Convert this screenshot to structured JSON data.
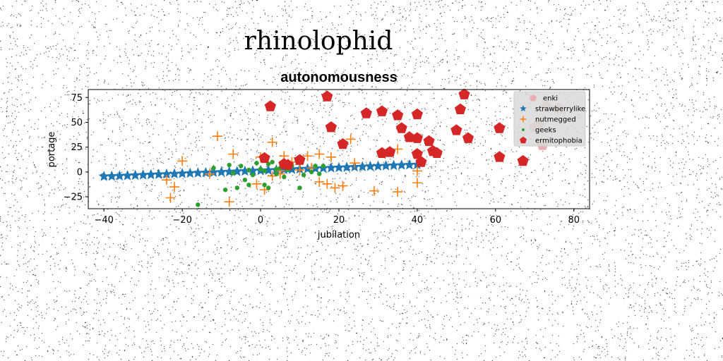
{
  "colors": {
    "background": "#ffffff",
    "noise": "#000000",
    "axes": "#000000",
    "legend_bg": "#d9d9d9"
  },
  "chart_data": {
    "type": "scatter",
    "suptitle": "rhinolophid",
    "title": "autonomousness",
    "xlabel": "jubilation",
    "ylabel": "portage",
    "xlim": [
      -44,
      84
    ],
    "ylim": [
      -37,
      83
    ],
    "xticks": [
      -40,
      -20,
      0,
      20,
      40,
      60,
      80
    ],
    "yticks": [
      -25,
      0,
      25,
      50,
      75
    ],
    "xtick_labels": [
      "−40",
      "−20",
      "0",
      "20",
      "40",
      "60",
      "80"
    ],
    "ytick_labels": [
      "−25",
      "0",
      "25",
      "50",
      "75"
    ],
    "grid": false,
    "legend_position": "top-right",
    "series": [
      {
        "name": "enki",
        "marker": "pentagon",
        "color": "#e8b0b0",
        "points": [
          [
            73,
            66
          ],
          [
            71,
            48
          ],
          [
            70,
            45
          ],
          [
            72,
            27
          ],
          [
            76,
            64
          ]
        ]
      },
      {
        "name": "strawberrylike",
        "marker": "star",
        "color": "#1f77b4",
        "points": [
          [
            -40,
            -4.5
          ],
          [
            -38,
            -4.3
          ],
          [
            -36,
            -4.0
          ],
          [
            -34,
            -3.7
          ],
          [
            -32,
            -3.4
          ],
          [
            -30,
            -3.1
          ],
          [
            -28,
            -2.8
          ],
          [
            -26,
            -2.5
          ],
          [
            -24,
            -2.2
          ],
          [
            -22,
            -1.9
          ],
          [
            -20,
            -1.6
          ],
          [
            -18,
            -1.3
          ],
          [
            -16,
            -1.0
          ],
          [
            -14,
            -0.7
          ],
          [
            -12,
            -0.4
          ],
          [
            -10,
            -0.1
          ],
          [
            -8,
            0.2
          ],
          [
            -6,
            0.5
          ],
          [
            -4,
            0.8
          ],
          [
            -2,
            1.1
          ],
          [
            0,
            1.4
          ],
          [
            2,
            1.7
          ],
          [
            4,
            2.0
          ],
          [
            6,
            2.3
          ],
          [
            8,
            2.6
          ],
          [
            10,
            2.9
          ],
          [
            12,
            3.2
          ],
          [
            14,
            3.5
          ],
          [
            16,
            3.8
          ],
          [
            18,
            4.1
          ],
          [
            20,
            4.4
          ],
          [
            22,
            4.7
          ],
          [
            24,
            5.0
          ],
          [
            26,
            5.3
          ],
          [
            28,
            5.6
          ],
          [
            30,
            5.9
          ],
          [
            32,
            6.2
          ],
          [
            34,
            6.5
          ],
          [
            36,
            6.8
          ],
          [
            38,
            7.1
          ],
          [
            40,
            7.4
          ]
        ]
      },
      {
        "name": "nutmegged",
        "marker": "plus",
        "color": "#ff7f0e",
        "points": [
          [
            -11,
            36
          ],
          [
            -20,
            11
          ],
          [
            -7,
            18
          ],
          [
            -24,
            -8
          ],
          [
            -22,
            -15
          ],
          [
            -23,
            -26
          ],
          [
            -8,
            -30
          ],
          [
            -13,
            -2
          ],
          [
            0,
            15
          ],
          [
            3,
            30
          ],
          [
            6,
            16
          ],
          [
            8,
            10
          ],
          [
            12,
            16
          ],
          [
            15,
            18
          ],
          [
            18,
            15
          ],
          [
            23,
            33
          ],
          [
            24,
            9
          ],
          [
            35,
            23
          ],
          [
            -1,
            -12
          ],
          [
            1,
            -18
          ],
          [
            3,
            -4
          ],
          [
            5,
            1
          ],
          [
            10,
            2
          ],
          [
            17,
            -12
          ],
          [
            19,
            -16
          ],
          [
            21,
            -14
          ],
          [
            29,
            -19
          ],
          [
            35,
            -20
          ],
          [
            40,
            1
          ],
          [
            40,
            -11
          ],
          [
            5,
            -2
          ],
          [
            7,
            8
          ],
          [
            13,
            4
          ],
          [
            15,
            -10
          ]
        ]
      },
      {
        "name": "geeks",
        "marker": "dot",
        "color": "#2ca02c",
        "points": [
          [
            -16,
            -33
          ],
          [
            -9,
            -18
          ],
          [
            -6,
            -16
          ],
          [
            -3,
            -13
          ],
          [
            -8,
            7
          ],
          [
            -5,
            6
          ],
          [
            -3,
            2
          ],
          [
            -1,
            9
          ],
          [
            0,
            3
          ],
          [
            1,
            1
          ],
          [
            2,
            8
          ],
          [
            3,
            10
          ],
          [
            4,
            -2
          ],
          [
            5,
            4
          ],
          [
            6,
            -5
          ],
          [
            7,
            2
          ],
          [
            8,
            6
          ],
          [
            10,
            -16
          ],
          [
            1,
            -13
          ],
          [
            2,
            -16
          ],
          [
            -2,
            -3
          ],
          [
            -4,
            -8
          ],
          [
            14,
            6
          ],
          [
            15,
            -2
          ],
          [
            16,
            6
          ],
          [
            -7,
            -1
          ],
          [
            4,
            3
          ],
          [
            11,
            -3
          ],
          [
            -12,
            4
          ],
          [
            13,
            0
          ]
        ]
      },
      {
        "name": "ermitophobia",
        "marker": "pentagon",
        "color": "#d62728",
        "points": [
          [
            17,
            76
          ],
          [
            2.5,
            66
          ],
          [
            1,
            14
          ],
          [
            6,
            8
          ],
          [
            7,
            7
          ],
          [
            10,
            12
          ],
          [
            18,
            45
          ],
          [
            21,
            28
          ],
          [
            27,
            59
          ],
          [
            31,
            61
          ],
          [
            31,
            19
          ],
          [
            33,
            20
          ],
          [
            35,
            57
          ],
          [
            36,
            44
          ],
          [
            38,
            35
          ],
          [
            40,
            34
          ],
          [
            40,
            18
          ],
          [
            41,
            10
          ],
          [
            40,
            58
          ],
          [
            43,
            31
          ],
          [
            44,
            21
          ],
          [
            45,
            19
          ],
          [
            50,
            42
          ],
          [
            51,
            63
          ],
          [
            53,
            34
          ],
          [
            52,
            78
          ],
          [
            61,
            44
          ],
          [
            61,
            15
          ],
          [
            67,
            11
          ]
        ]
      }
    ]
  }
}
